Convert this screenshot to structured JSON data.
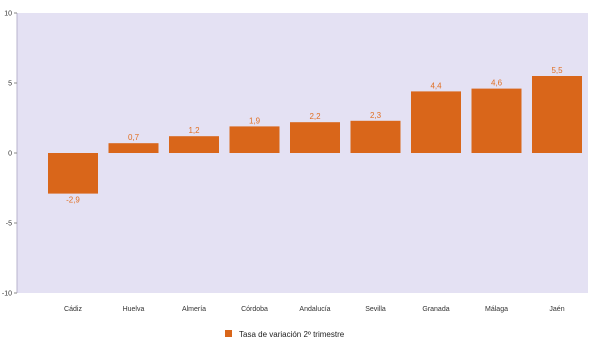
{
  "chart_data": {
    "type": "bar",
    "categories": [
      "Cádiz",
      "Huelva",
      "Almería",
      "Córdoba",
      "Andalucía",
      "Sevilla",
      "Granada",
      "Málaga",
      "Jaén"
    ],
    "series": [
      {
        "name": "Tasa de variación 2º trimestre",
        "values": [
          -2.9,
          0.7,
          1.2,
          1.9,
          2.2,
          2.3,
          4.4,
          4.6,
          5.5
        ]
      }
    ],
    "yticks": [
      -10,
      -5,
      0,
      5,
      10
    ],
    "ylim": [
      -10,
      10
    ],
    "grid": false,
    "legend_position": "bottom-center",
    "colors": {
      "plot_background": "#e4e1f3",
      "bar": "#d9661a",
      "data_label": "#e06f23"
    }
  }
}
